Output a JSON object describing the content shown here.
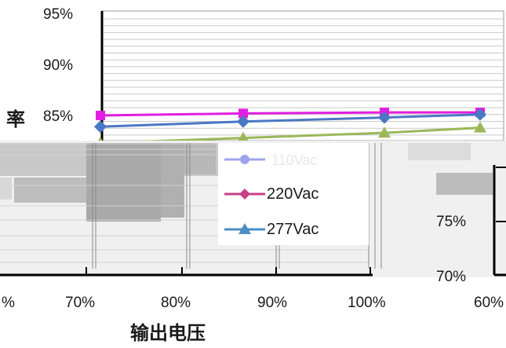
{
  "chart_data": {
    "type": "line",
    "xlabel": "输出电压",
    "ylabel": "率",
    "y_tick_labels": [
      "95%",
      "90%",
      "85%",
      "75%",
      "70%"
    ],
    "x_tick_labels": [
      "%",
      "70%",
      "80%",
      "90%",
      "100%",
      "60%"
    ],
    "ylim": [
      0.7,
      0.95
    ],
    "grid": true,
    "legend_placement": "center",
    "legend": [
      "220Vac",
      "277Vac"
    ],
    "legend_obscured_label": "110Vac",
    "series": [
      {
        "name": "110Vac",
        "color": "#e11ee1",
        "marker": "square",
        "x": [
          0,
          1,
          2,
          3
        ],
        "values": [
          0.85,
          0.852,
          0.853,
          0.853
        ]
      },
      {
        "name": "220Vac",
        "color": "#4a78c4",
        "marker": "diamond",
        "x": [
          0,
          1,
          2,
          3
        ],
        "values": [
          0.839,
          0.844,
          0.848,
          0.851
        ]
      },
      {
        "name": "277Vac",
        "color": "#9ab85a",
        "marker": "triangle",
        "x": [
          0,
          1,
          2,
          3
        ],
        "values": [
          0.823,
          0.828,
          0.833,
          0.838
        ]
      }
    ],
    "legend_entries": [
      {
        "label": "110Vac",
        "color": "#9da4ee",
        "marker": "circle"
      },
      {
        "label": "220Vac",
        "color": "#c8408a",
        "marker": "diamond"
      },
      {
        "label": "277Vac",
        "color": "#4a8ec4",
        "marker": "triangle"
      }
    ]
  }
}
